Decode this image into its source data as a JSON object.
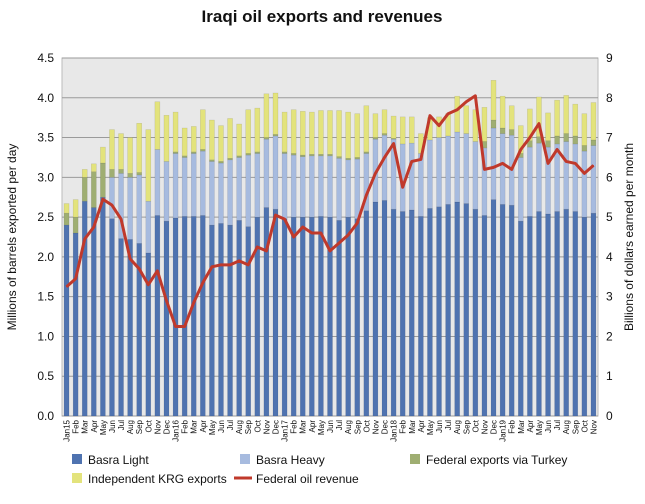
{
  "chart_data": {
    "type": "bar",
    "title": "Iraqi oil exports and revenues",
    "ylabel": "Millions of barrels exported per day",
    "y2label": "Billions of dollars earned per month",
    "ylim": [
      0,
      4.5
    ],
    "y2lim": [
      0,
      9
    ],
    "yticks": [
      "0.0",
      "0.5",
      "1.0",
      "1.5",
      "2.0",
      "2.5",
      "3.0",
      "3.5",
      "4.0",
      "4.5"
    ],
    "y2ticks": [
      "0",
      "1",
      "2",
      "3",
      "4",
      "5",
      "6",
      "7",
      "8",
      "9"
    ],
    "grid": true,
    "legend_position": "bottom",
    "categories": [
      "Jan15",
      "Feb",
      "Mar",
      "Apr",
      "May",
      "Jun",
      "Jul",
      "Aug",
      "Sep",
      "Oct",
      "Nov",
      "Dec",
      "Jan16",
      "Feb",
      "Mar",
      "Apr",
      "May",
      "Jun",
      "Jul",
      "Aug",
      "Sep",
      "Oct",
      "Nov",
      "Dec",
      "Jan17",
      "Feb",
      "Mar",
      "Apr",
      "May",
      "Jun",
      "Jul",
      "Aug",
      "Sep",
      "Oct",
      "Nov",
      "Dec",
      "Jan18",
      "Feb",
      "Mar",
      "Apr",
      "May",
      "Jun",
      "Jul",
      "Aug",
      "Sep",
      "Oct",
      "Nov",
      "Dec",
      "Jan19",
      "Feb",
      "Mar",
      "Apr",
      "May",
      "Jun",
      "Jul",
      "Aug",
      "Sep",
      "Oct",
      "Nov"
    ],
    "series": [
      {
        "name": "Basra Light",
        "kind": "bar",
        "color": "#4f73b0",
        "values": [
          2.4,
          2.3,
          2.7,
          2.62,
          2.75,
          2.48,
          2.23,
          2.22,
          2.17,
          2.05,
          2.52,
          2.45,
          2.49,
          2.51,
          2.51,
          2.52,
          2.4,
          2.42,
          2.4,
          2.46,
          2.38,
          2.5,
          2.62,
          2.6,
          2.48,
          2.5,
          2.5,
          2.5,
          2.51,
          2.5,
          2.46,
          2.5,
          2.48,
          2.58,
          2.69,
          2.71,
          2.6,
          2.57,
          2.59,
          2.51,
          2.61,
          2.63,
          2.66,
          2.69,
          2.67,
          2.6,
          2.52,
          2.72,
          2.66,
          2.65,
          2.45,
          2.51,
          2.57,
          2.54,
          2.57,
          2.6,
          2.57,
          2.5,
          2.55
        ]
      },
      {
        "name": "Basra Heavy",
        "kind": "bar",
        "color": "#a7bbdf",
        "values": [
          0,
          0,
          0,
          0,
          0,
          0.52,
          0.82,
          0.78,
          0.86,
          0.65,
          0.83,
          0.75,
          0.81,
          0.74,
          0.79,
          0.81,
          0.8,
          0.76,
          0.82,
          0.79,
          0.9,
          0.8,
          0.86,
          0.92,
          0.82,
          0.78,
          0.76,
          0.77,
          0.76,
          0.77,
          0.78,
          0.72,
          0.75,
          0.72,
          0.79,
          0.82,
          0.88,
          0.85,
          0.84,
          0.79,
          0.86,
          0.87,
          0.86,
          0.88,
          0.88,
          0.85,
          0.85,
          0.9,
          0.89,
          0.88,
          0.8,
          0.87,
          0.86,
          0.84,
          0.85,
          0.85,
          0.85,
          0.83,
          0.85
        ]
      },
      {
        "name": "Federal exports via Turkey",
        "kind": "bar",
        "color": "#9fae72",
        "values": [
          0.15,
          0.2,
          0.3,
          0.45,
          0.43,
          0.1,
          0.05,
          0.05,
          0.03,
          0,
          0,
          0,
          0.02,
          0.02,
          0.02,
          0.02,
          0.02,
          0.02,
          0.02,
          0.02,
          0.02,
          0.02,
          0.02,
          0.02,
          0.02,
          0.02,
          0.02,
          0.02,
          0.02,
          0.02,
          0.02,
          0.02,
          0.02,
          0.02,
          0.02,
          0.02,
          0.01,
          0,
          0,
          0,
          0,
          0,
          0,
          0,
          0,
          0,
          0.08,
          0.1,
          0.07,
          0.07,
          0.05,
          0.08,
          0.08,
          0.08,
          0.1,
          0.1,
          0.1,
          0.07,
          0.07
        ]
      },
      {
        "name": "Independent KRG exports",
        "kind": "bar",
        "color": "#e3e37c",
        "values": [
          0.12,
          0.22,
          0.1,
          0.1,
          0.2,
          0.5,
          0.45,
          0.45,
          0.62,
          0.9,
          0.6,
          0.58,
          0.5,
          0.35,
          0.32,
          0.5,
          0.5,
          0.45,
          0.5,
          0.4,
          0.55,
          0.55,
          0.55,
          0.52,
          0.5,
          0.55,
          0.55,
          0.53,
          0.55,
          0.55,
          0.58,
          0.58,
          0.55,
          0.58,
          0.3,
          0.3,
          0.28,
          0.34,
          0.33,
          0.25,
          0.28,
          0.26,
          0.28,
          0.45,
          0.35,
          0.4,
          0.43,
          0.5,
          0.4,
          0.3,
          0.35,
          0.4,
          0.5,
          0.35,
          0.45,
          0.48,
          0.4,
          0.4,
          0.47
        ]
      },
      {
        "name": "Federal oil revenue",
        "kind": "line",
        "axis": "right",
        "color": "#c0392b",
        "values": [
          3.25,
          3.45,
          4.45,
          4.75,
          5.45,
          5.3,
          4.95,
          3.95,
          3.7,
          3.3,
          3.65,
          2.9,
          2.25,
          2.25,
          2.85,
          3.35,
          3.75,
          3.8,
          3.8,
          3.9,
          3.8,
          4.25,
          4.15,
          5.05,
          4.95,
          4.5,
          4.75,
          4.6,
          4.6,
          4.15,
          4.35,
          4.55,
          4.85,
          5.55,
          6.1,
          6.5,
          6.85,
          5.75,
          6.4,
          6.45,
          7.55,
          7.3,
          7.6,
          7.7,
          7.9,
          8.05,
          6.2,
          6.25,
          6.35,
          6.2,
          6.7,
          7.0,
          7.35,
          6.35,
          6.7,
          6.4,
          6.35,
          6.1,
          6.3
        ]
      }
    ]
  }
}
